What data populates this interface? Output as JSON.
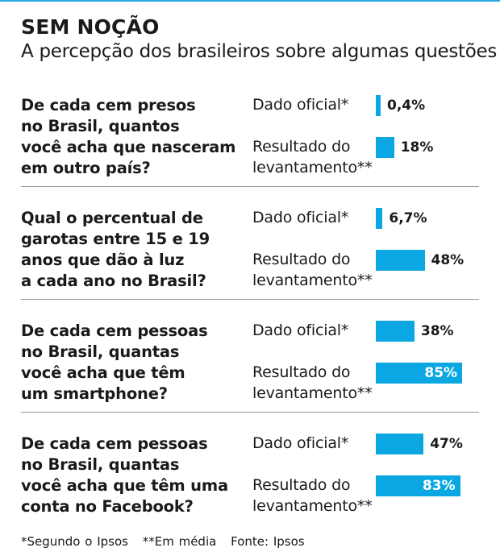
{
  "title": "SEM NOÇÃO",
  "subtitle": "A percepção dos brasileiros sobre algumas questões",
  "labels": {
    "official": "Dado oficial*",
    "survey": "Resultado do\nlevantamento**"
  },
  "footer": {
    "note1": "*Segundo o Ipsos",
    "note2": "**Em média",
    "source": "Fonte: Ipsos"
  },
  "colors": {
    "bar": "#0ba7e2",
    "top_rule": "#27a9e1",
    "text": "#1a1a1a"
  },
  "chart_data": {
    "type": "bar",
    "orientation": "horizontal",
    "series_labels": [
      "Dado oficial*",
      "Resultado do levantamento**"
    ],
    "items": [
      {
        "question": "De cada cem presos\nno Brasil, quantos\nvocê acha que nasceram\nem outro país?",
        "official": 0.4,
        "official_label": "0,4%",
        "survey": 18,
        "survey_label": "18%"
      },
      {
        "question": "Qual o percentual de\ngarotas entre 15 e 19\nanos que dão à luz\na cada ano no Brasil?",
        "official": 6.7,
        "official_label": "6,7%",
        "survey": 48,
        "survey_label": "48%"
      },
      {
        "question": "De cada cem pessoas\nno Brasil, quantas\nvocê acha que têm\num smartphone?",
        "official": 38,
        "official_label": "38%",
        "survey": 85,
        "survey_label": "85%"
      },
      {
        "question": "De cada cem pessoas\nno Brasil, quantas\nvocê acha que têm uma\nconta no Facebook?",
        "official": 47,
        "official_label": "47%",
        "survey": 83,
        "survey_label": "83%"
      }
    ],
    "xlim": [
      0,
      100
    ]
  }
}
